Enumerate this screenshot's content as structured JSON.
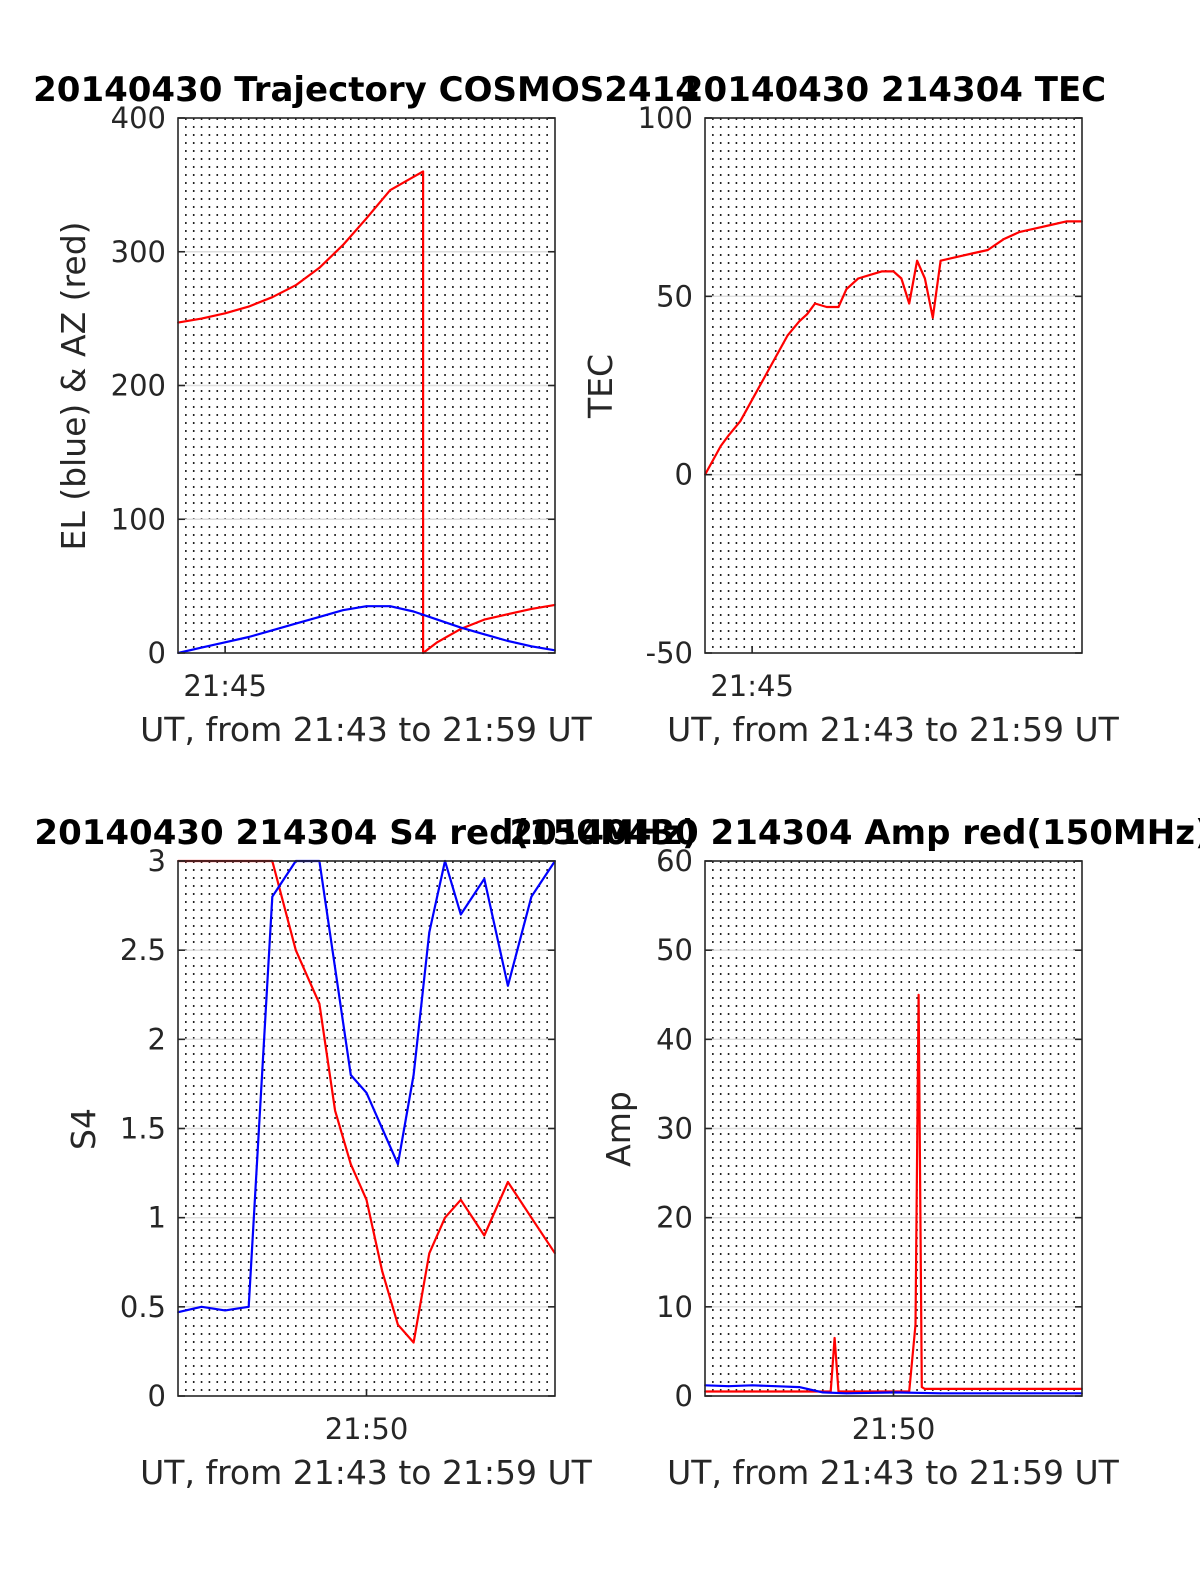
{
  "colors": {
    "red": "#ff0000",
    "blue": "#0000ff",
    "text": "#262626",
    "grid": "#dcdcdc"
  },
  "chart_data": [
    {
      "type": "line",
      "title": "20140430 Trajectory COSMOS2414",
      "xlabel": "UT, from 21:43 to 21:59 UT",
      "ylabel": "EL (blue) & AZ (red)",
      "xlim": [
        "21:44:00",
        "21:52:00"
      ],
      "ylim": [
        0,
        400
      ],
      "yticks": [
        "0",
        "100",
        "200",
        "300",
        "400"
      ],
      "xtick_labels": [
        {
          "t": "21:45",
          "label": "21:45"
        }
      ],
      "grid": "vertical dotted every 10 s, horizontal light",
      "series": [
        {
          "color": "red",
          "x": [
            "21:44:00",
            "21:44:30",
            "21:45:00",
            "21:45:30",
            "21:46:00",
            "21:46:30",
            "21:47:00",
            "21:47:30",
            "21:48:00",
            "21:48:30",
            "21:49:00",
            "21:49:12",
            "21:49:12",
            "21:49:30",
            "21:50:00",
            "21:50:30",
            "21:51:00",
            "21:51:30",
            "21:52:00"
          ],
          "y": [
            247,
            250,
            254,
            259,
            266,
            275,
            288,
            305,
            325,
            346,
            356,
            360,
            0,
            8,
            18,
            25,
            29,
            33,
            36
          ]
        },
        {
          "color": "blue",
          "x": [
            "21:44:00",
            "21:44:30",
            "21:45:00",
            "21:45:30",
            "21:46:00",
            "21:46:30",
            "21:47:00",
            "21:47:30",
            "21:48:00",
            "21:48:30",
            "21:49:00",
            "21:49:30",
            "21:50:00",
            "21:50:30",
            "21:51:00",
            "21:51:30",
            "21:52:00"
          ],
          "y": [
            0,
            4,
            8,
            12,
            17,
            22,
            27,
            32,
            35,
            35,
            31,
            25,
            19,
            14,
            9,
            5,
            2
          ]
        }
      ]
    },
    {
      "type": "line",
      "title": "20140430 214304 TEC",
      "xlabel": "UT, from 21:43 to 21:59 UT",
      "ylabel": "TEC",
      "xlim": [
        "21:44:00",
        "21:52:00"
      ],
      "ylim": [
        -50,
        100
      ],
      "yticks": [
        "-50",
        "0",
        "50",
        "100"
      ],
      "xtick_labels": [
        {
          "t": "21:45",
          "label": "21:45"
        }
      ],
      "grid": "vertical dotted every 10 s, horizontal light",
      "series": [
        {
          "color": "red",
          "x": [
            "21:44:00",
            "21:44:10",
            "21:44:20",
            "21:44:30",
            "21:44:45",
            "21:45:00",
            "21:45:15",
            "21:45:30",
            "21:45:45",
            "21:46:00",
            "21:46:10",
            "21:46:20",
            "21:46:35",
            "21:46:50",
            "21:47:00",
            "21:47:15",
            "21:47:30",
            "21:47:45",
            "21:48:00",
            "21:48:10",
            "21:48:20",
            "21:48:30",
            "21:48:40",
            "21:48:50",
            "21:49:00",
            "21:49:20",
            "21:49:40",
            "21:50:00",
            "21:50:20",
            "21:50:40",
            "21:51:00",
            "21:51:20",
            "21:51:40",
            "21:52:00"
          ],
          "y": [
            0,
            4,
            8,
            11,
            15,
            21,
            27,
            33,
            39,
            43,
            45,
            48,
            47,
            47,
            52,
            55,
            56,
            57,
            57,
            55,
            48,
            60,
            55,
            44,
            60,
            61,
            62,
            63,
            66,
            68,
            69,
            70,
            71,
            71
          ]
        }
      ]
    },
    {
      "type": "line",
      "title": "20140430 214304 S4 red(150MHz)",
      "xlabel": "UT, from 21:43 to 21:59 UT",
      "ylabel": "S4",
      "xlim": [
        "21:46:00",
        "21:54:00"
      ],
      "ylim": [
        0,
        3
      ],
      "yticks": [
        "0",
        "0.5",
        "1",
        "1.5",
        "2",
        "2.5",
        "3"
      ],
      "xtick_labels": [
        {
          "t": "21:50",
          "label": "21:50"
        }
      ],
      "grid": "vertical dotted every 10 s, horizontal light",
      "series": [
        {
          "color": "red",
          "x": [
            "21:46:00",
            "21:46:30",
            "21:47:00",
            "21:47:30",
            "21:48:00",
            "21:48:30",
            "21:49:00",
            "21:49:20",
            "21:49:40",
            "21:50:00",
            "21:50:20",
            "21:50:40",
            "21:51:00",
            "21:51:20",
            "21:51:40",
            "21:52:00",
            "21:52:30",
            "21:53:00",
            "21:53:30",
            "21:54:00"
          ],
          "y": [
            3,
            3,
            3,
            3,
            3,
            2.5,
            2.2,
            1.6,
            1.3,
            1.1,
            0.7,
            0.4,
            0.3,
            0.8,
            1.0,
            1.1,
            0.9,
            1.2,
            1.0,
            0.8
          ]
        },
        {
          "color": "blue",
          "x": [
            "21:46:00",
            "21:46:30",
            "21:47:00",
            "21:47:30",
            "21:48:00",
            "21:48:30",
            "21:49:00",
            "21:49:20",
            "21:49:40",
            "21:50:00",
            "21:50:20",
            "21:50:40",
            "21:51:00",
            "21:51:20",
            "21:51:40",
            "21:52:00",
            "21:52:30",
            "21:53:00",
            "21:53:30",
            "21:54:00"
          ],
          "y": [
            0.47,
            0.5,
            0.48,
            0.5,
            2.8,
            3,
            3,
            2.4,
            1.8,
            1.7,
            1.5,
            1.3,
            1.8,
            2.6,
            3,
            2.7,
            2.9,
            2.3,
            2.8,
            3
          ]
        }
      ]
    },
    {
      "type": "line",
      "title": "20140430 214304 Amp red(150MHz)",
      "xlabel": "UT, from 21:43 to 21:59 UT",
      "ylabel": "Amp",
      "xlim": [
        "21:46:00",
        "21:54:00"
      ],
      "ylim": [
        0,
        60
      ],
      "yticks": [
        "0",
        "10",
        "20",
        "30",
        "40",
        "50",
        "60"
      ],
      "xtick_labels": [
        {
          "t": "21:50",
          "label": "21:50"
        }
      ],
      "grid": "vertical dotted every 10 s, horizontal light",
      "series": [
        {
          "color": "red",
          "x": [
            "21:46:00",
            "21:48:40",
            "21:48:45",
            "21:48:50",
            "21:50:20",
            "21:50:28",
            "21:50:32",
            "21:50:36",
            "21:50:40",
            "21:54:00"
          ],
          "y": [
            0.5,
            0.5,
            6.5,
            0.5,
            0.5,
            8,
            45,
            1,
            0.8,
            0.8
          ]
        },
        {
          "color": "blue",
          "x": [
            "21:46:00",
            "21:46:30",
            "21:47:00",
            "21:47:30",
            "21:48:00",
            "21:48:30",
            "21:49:00",
            "21:50:00",
            "21:51:00",
            "21:52:00",
            "21:53:00",
            "21:54:00"
          ],
          "y": [
            1.2,
            1.1,
            1.2,
            1.1,
            1.0,
            0.4,
            0.3,
            0.4,
            0.3,
            0.3,
            0.3,
            0.3
          ]
        }
      ]
    }
  ]
}
